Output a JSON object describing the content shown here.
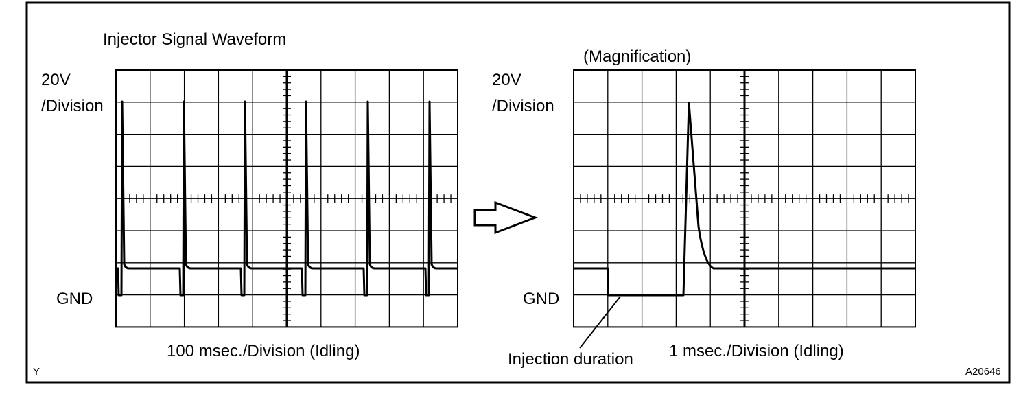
{
  "title": "Injector Signal Waveform",
  "magnification_label": "(Magnification)",
  "left_scope": {
    "voltage_label_line1": "20V",
    "voltage_label_line2": "/Division",
    "gnd_label": "GND",
    "time_label": "100 msec./Division (Idling)"
  },
  "right_scope": {
    "voltage_label_line1": "20V",
    "voltage_label_line2": "/Division",
    "gnd_label": "GND",
    "time_label": "1 msec./Division (Idling)",
    "annotation": "Injection duration"
  },
  "corner_letter": "Y",
  "figure_code": "A20646"
}
